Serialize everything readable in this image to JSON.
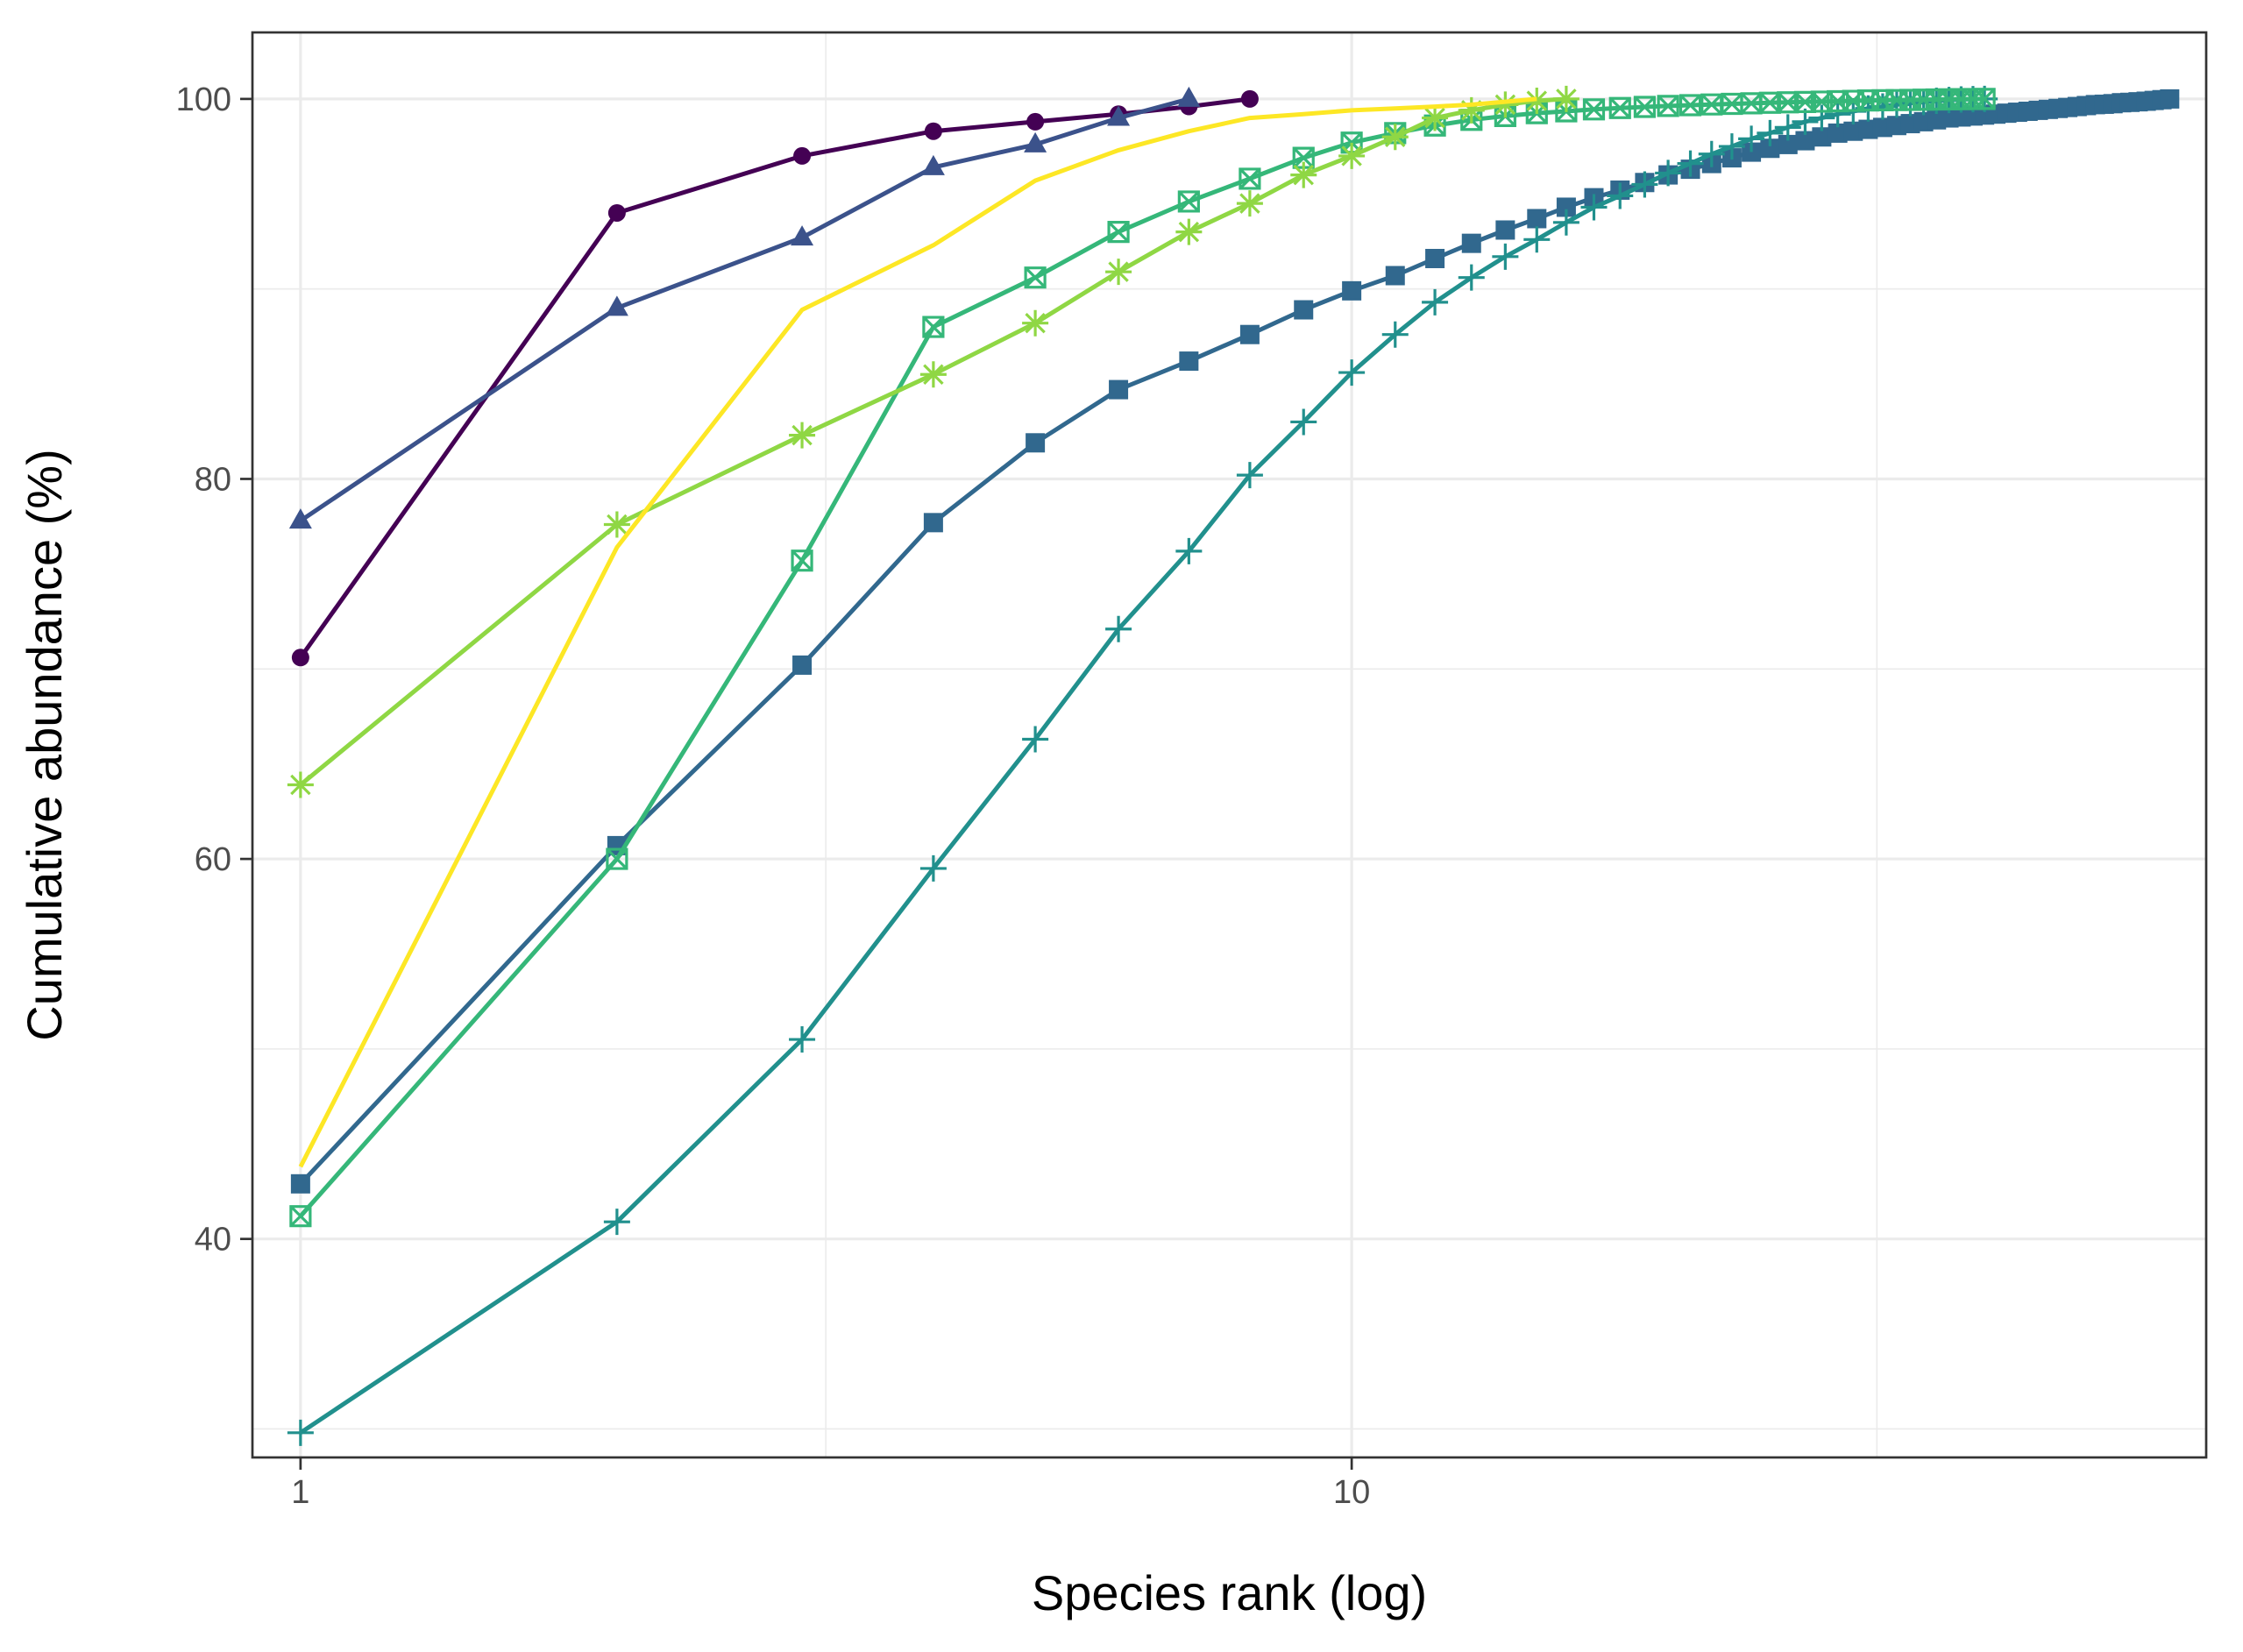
{
  "chart_data": {
    "type": "line",
    "xlabel": "Species rank (log)",
    "ylabel": "Cumulative abundance (%)",
    "x_scale": "log10",
    "xlim": [
      0.9,
      65
    ],
    "ylim": [
      28.5,
      103.5
    ],
    "x_ticks": [
      1,
      10
    ],
    "x_tick_labels": [
      "1",
      "10"
    ],
    "x_minor_ticks": [
      3.16,
      31.6
    ],
    "y_ticks": [
      40,
      60,
      80,
      100
    ],
    "y_tick_labels": [
      "40",
      "60",
      "80",
      "100"
    ],
    "y_minor_ticks": [
      30,
      50,
      70,
      90
    ],
    "grid": true,
    "legend": "none",
    "series": [
      {
        "color": "#440154",
        "marker": "circle",
        "x": [
          1,
          2,
          3,
          4,
          5,
          6,
          7,
          8
        ],
        "y": [
          70.6,
          94.0,
          97.0,
          98.3,
          98.8,
          99.2,
          99.6,
          100.0
        ]
      },
      {
        "color": "#3b528b",
        "marker": "triangle",
        "x": [
          1,
          2,
          3,
          4,
          5,
          6,
          7
        ],
        "y": [
          77.8,
          89.0,
          92.7,
          96.4,
          97.6,
          99.0,
          100.0
        ]
      },
      {
        "color": "#31688e",
        "marker": "square",
        "x": [
          1,
          2,
          3,
          4,
          5,
          6,
          7,
          8,
          9,
          10,
          11,
          12,
          13,
          14,
          15,
          16,
          17,
          18,
          19,
          20,
          21,
          22,
          23,
          24,
          25,
          26,
          27,
          28,
          29,
          30,
          31,
          32,
          33,
          34,
          35,
          36,
          37,
          38,
          39,
          40,
          41,
          42,
          43,
          44,
          45,
          46,
          47,
          48,
          49,
          50,
          51,
          52,
          53,
          54,
          55,
          56,
          57,
          58,
          59,
          60
        ],
        "y": [
          42.9,
          60.7,
          70.2,
          77.7,
          81.9,
          84.7,
          86.2,
          87.6,
          88.9,
          89.9,
          90.7,
          91.6,
          92.4,
          93.1,
          93.7,
          94.3,
          94.8,
          95.2,
          95.6,
          96.0,
          96.3,
          96.6,
          96.9,
          97.2,
          97.4,
          97.6,
          97.8,
          98.0,
          98.2,
          98.3,
          98.4,
          98.5,
          98.6,
          98.7,
          98.8,
          98.9,
          99.0,
          99.05,
          99.1,
          99.15,
          99.2,
          99.25,
          99.3,
          99.35,
          99.4,
          99.45,
          99.5,
          99.55,
          99.6,
          99.65,
          99.7,
          99.72,
          99.75,
          99.8,
          99.82,
          99.85,
          99.88,
          99.92,
          99.96,
          100.0
        ]
      },
      {
        "color": "#21908d",
        "marker": "plus",
        "x": [
          1,
          2,
          3,
          4,
          5,
          6,
          7,
          8,
          9,
          10,
          11,
          12,
          13,
          14,
          15,
          16,
          17,
          18,
          19,
          20,
          21,
          22,
          23,
          24,
          25,
          26,
          27,
          28,
          29,
          30,
          31,
          32,
          33,
          34,
          35,
          36,
          37,
          38,
          39,
          40
        ],
        "y": [
          29.8,
          40.9,
          50.5,
          59.5,
          66.3,
          72.1,
          76.2,
          80.2,
          83.0,
          85.6,
          87.6,
          89.3,
          90.6,
          91.7,
          92.6,
          93.5,
          94.3,
          94.9,
          95.5,
          96.1,
          96.6,
          97.1,
          97.5,
          97.9,
          98.2,
          98.5,
          98.8,
          99.0,
          99.2,
          99.35,
          99.5,
          99.6,
          99.7,
          99.78,
          99.84,
          99.9,
          99.94,
          99.97,
          99.99,
          100.0
        ]
      },
      {
        "color": "#35b779",
        "marker": "square-cross",
        "x": [
          1,
          2,
          3,
          4,
          5,
          6,
          7,
          8,
          9,
          10,
          11,
          12,
          13,
          14,
          15,
          16,
          17,
          18,
          19,
          20,
          21,
          22,
          23,
          24,
          25,
          26,
          27,
          28,
          29,
          30,
          31,
          32,
          33,
          34,
          35,
          36,
          37,
          38,
          39,
          40
        ],
        "y": [
          41.2,
          60.0,
          75.7,
          88.0,
          90.6,
          93.0,
          94.6,
          95.8,
          96.9,
          97.7,
          98.2,
          98.6,
          98.9,
          99.1,
          99.25,
          99.35,
          99.45,
          99.52,
          99.58,
          99.63,
          99.67,
          99.71,
          99.74,
          99.77,
          99.8,
          99.82,
          99.84,
          99.86,
          99.88,
          99.9,
          99.92,
          99.93,
          99.94,
          99.95,
          99.96,
          99.97,
          99.98,
          99.99,
          99.995,
          100.0
        ]
      },
      {
        "color": "#8fd744",
        "marker": "asterisk",
        "x": [
          1,
          2,
          3,
          4,
          5,
          6,
          7,
          8,
          9,
          10,
          11,
          12,
          13,
          14,
          15,
          16
        ],
        "y": [
          63.9,
          77.6,
          82.3,
          85.5,
          88.2,
          90.9,
          93.0,
          94.5,
          96.0,
          97.0,
          98.0,
          99.0,
          99.4,
          99.7,
          99.9,
          100.0
        ]
      },
      {
        "color": "#fde725",
        "marker": "none",
        "x": [
          1,
          2,
          3,
          4,
          5,
          6,
          7,
          8,
          9,
          10,
          11,
          12,
          13,
          14,
          15
        ],
        "y": [
          43.8,
          76.4,
          88.9,
          92.3,
          95.7,
          97.3,
          98.3,
          99.0,
          99.2,
          99.4,
          99.5,
          99.6,
          99.7,
          99.85,
          100.0
        ]
      }
    ]
  }
}
